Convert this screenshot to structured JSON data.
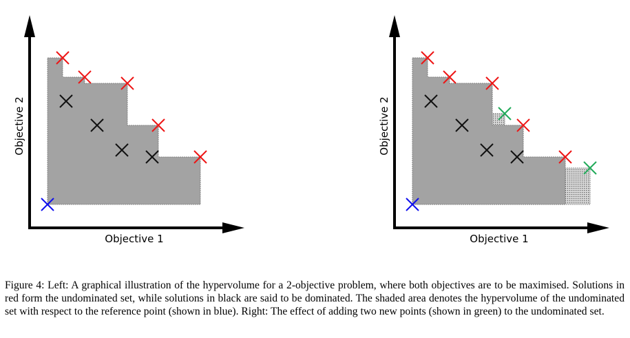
{
  "left": {
    "x_label": "Objective 1",
    "y_label": "Objective 2",
    "reference_point": {
      "x": 0,
      "y": 0,
      "color": "#1010ee"
    },
    "undominated": [
      {
        "x": 22,
        "y": 213
      },
      {
        "x": 54,
        "y": 185
      },
      {
        "x": 116,
        "y": 176
      },
      {
        "x": 161,
        "y": 115
      },
      {
        "x": 222,
        "y": 69
      }
    ],
    "dominated": [
      {
        "x": 27,
        "y": 150
      },
      {
        "x": 72,
        "y": 115
      },
      {
        "x": 108,
        "y": 79
      },
      {
        "x": 152,
        "y": 69
      }
    ],
    "new_points": []
  },
  "right": {
    "x_label": "Objective 1",
    "y_label": "Objective 2",
    "reference_point": {
      "x": 0,
      "y": 0,
      "color": "#1010ee"
    },
    "undominated": [
      {
        "x": 22,
        "y": 213
      },
      {
        "x": 54,
        "y": 185
      },
      {
        "x": 116,
        "y": 176
      },
      {
        "x": 161,
        "y": 115
      },
      {
        "x": 222,
        "y": 69
      }
    ],
    "dominated": [
      {
        "x": 27,
        "y": 150
      },
      {
        "x": 72,
        "y": 115
      },
      {
        "x": 108,
        "y": 79
      },
      {
        "x": 152,
        "y": 69
      }
    ],
    "new_points": [
      {
        "x": 134,
        "y": 132
      },
      {
        "x": 258,
        "y": 53
      }
    ]
  },
  "colors": {
    "undominated": "#ee1515",
    "dominated": "#111111",
    "new_points": "#22aa5a",
    "reference": "#1010ee",
    "hypervolume_fill": "#a3a3a3",
    "added_area_fill": "#c8c8c8"
  },
  "caption": "Figure 4: Left: A graphical illustration of the hypervolume for a 2-objective problem, where both objectives are to be maximised. Solutions in red form the undominated set, while solutions in black are said to be dominated. The shaded area denotes the hypervolume of the undominated set with respect to the reference point (shown in blue). Right: The effect of adding two new points (shown in green) to the undominated set."
}
